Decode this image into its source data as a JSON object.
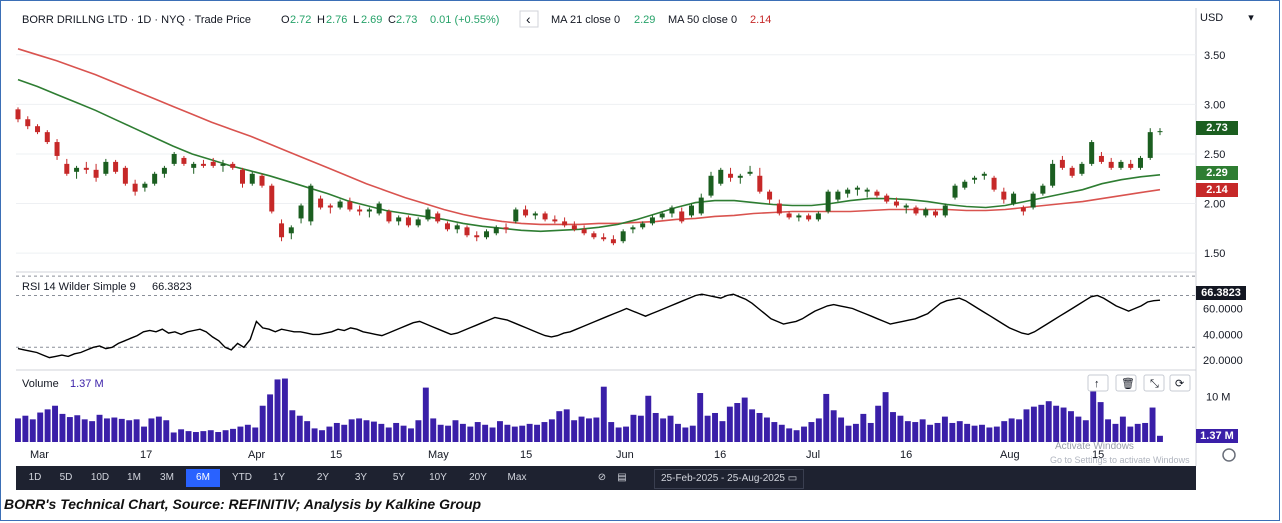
{
  "header": {
    "symbol": "BORR DRILLNG LTD · 1D · NYQ · Trade Price",
    "o_label": "O",
    "o_value": "2.72",
    "h_label": "H",
    "h_value": "2.76",
    "l_label": "L",
    "l_value": "2.69",
    "c_label": "C",
    "c_value": "2.73",
    "change": "0.01 (+0.55%)",
    "back_glyph": "‹",
    "ma21_label": "MA 21 close 0",
    "ma21_value": "2.29",
    "ma50_label": "MA 50 close 0",
    "ma50_value": "2.14"
  },
  "currency": "USD",
  "price_tags": {
    "last": "2.73",
    "ma21": "2.29",
    "ma50": "2.14"
  },
  "rsi": {
    "label": "RSI 14 Wilder Simple 9",
    "value": "66.3823"
  },
  "volume": {
    "label": "Volume",
    "value": "1.37 M",
    "tag": "1.37 M"
  },
  "x_axis_labels": [
    "Mar",
    "17",
    "Apr",
    "15",
    "May",
    "15",
    "Jun",
    "16",
    "Jul",
    "16",
    "Aug",
    "15"
  ],
  "timeframes": [
    "1D",
    "5D",
    "10D",
    "1M",
    "3M",
    "6M",
    "YTD",
    "1Y",
    "2Y",
    "3Y",
    "5Y",
    "10Y",
    "20Y",
    "Max"
  ],
  "active_timeframe": "6M",
  "date_range": "25-Feb-2025 - 25-Aug-2025",
  "watermark": {
    "title": "Activate Windows",
    "sub": "Go to Settings to activate Windows"
  },
  "caption": "BORR's Technical Chart, Source: REFINITIV; Analysis by Kalkine Group",
  "colors": {
    "up": "#1b5e20",
    "down": "#c62828",
    "ma21": "#2e7d32",
    "ma50": "#d9534f",
    "volume": "#3a1fa8",
    "rsi": "#000000",
    "active_tf": "#2962ff"
  },
  "chart_data": [
    {
      "type": "candlestick",
      "title": "BORR DRILLNG LTD · 1D · NYQ · Trade Price",
      "ylim": [
        1.35,
        3.75
      ],
      "yticks": [
        "3.50",
        "3.00",
        "2.50",
        "2.00",
        "1.50"
      ],
      "candles": [
        [
          2.95,
          2.97,
          2.82,
          2.85
        ],
        [
          2.85,
          2.88,
          2.75,
          2.78
        ],
        [
          2.78,
          2.8,
          2.7,
          2.72
        ],
        [
          2.72,
          2.74,
          2.6,
          2.62
        ],
        [
          2.62,
          2.65,
          2.44,
          2.48
        ],
        [
          2.4,
          2.45,
          2.28,
          2.3
        ],
        [
          2.32,
          2.38,
          2.25,
          2.36
        ],
        [
          2.36,
          2.42,
          2.3,
          2.34
        ],
        [
          2.34,
          2.4,
          2.22,
          2.26
        ],
        [
          2.3,
          2.45,
          2.28,
          2.42
        ],
        [
          2.42,
          2.44,
          2.3,
          2.32
        ],
        [
          2.36,
          2.38,
          2.18,
          2.2
        ],
        [
          2.2,
          2.24,
          2.08,
          2.12
        ],
        [
          2.16,
          2.22,
          2.12,
          2.2
        ],
        [
          2.2,
          2.32,
          2.18,
          2.3
        ],
        [
          2.3,
          2.38,
          2.26,
          2.36
        ],
        [
          2.4,
          2.52,
          2.38,
          2.5
        ],
        [
          2.46,
          2.48,
          2.38,
          2.4
        ],
        [
          2.36,
          2.42,
          2.3,
          2.4
        ],
        [
          2.4,
          2.44,
          2.36,
          2.38
        ],
        [
          2.42,
          2.46,
          2.36,
          2.38
        ],
        [
          2.38,
          2.44,
          2.32,
          2.4
        ],
        [
          2.4,
          2.42,
          2.34,
          2.36
        ],
        [
          2.34,
          2.36,
          2.16,
          2.2
        ],
        [
          2.2,
          2.32,
          2.18,
          2.3
        ],
        [
          2.28,
          2.3,
          2.16,
          2.18
        ],
        [
          2.18,
          2.2,
          1.9,
          1.92
        ],
        [
          1.8,
          1.84,
          1.62,
          1.66
        ],
        [
          1.7,
          1.78,
          1.64,
          1.76
        ],
        [
          1.85,
          2.0,
          1.8,
          1.98
        ],
        [
          1.82,
          2.2,
          1.78,
          2.18
        ],
        [
          2.05,
          2.08,
          1.94,
          1.96
        ],
        [
          1.98,
          2.0,
          1.9,
          1.96
        ],
        [
          1.96,
          2.04,
          1.94,
          2.02
        ],
        [
          2.02,
          2.06,
          1.92,
          1.94
        ],
        [
          1.94,
          1.98,
          1.88,
          1.92
        ],
        [
          1.92,
          1.96,
          1.86,
          1.94
        ],
        [
          1.9,
          2.02,
          1.88,
          2.0
        ],
        [
          1.92,
          1.94,
          1.8,
          1.82
        ],
        [
          1.82,
          1.88,
          1.78,
          1.86
        ],
        [
          1.86,
          1.88,
          1.76,
          1.78
        ],
        [
          1.78,
          1.86,
          1.76,
          1.84
        ],
        [
          1.84,
          1.96,
          1.82,
          1.94
        ],
        [
          1.9,
          1.92,
          1.8,
          1.82
        ],
        [
          1.8,
          1.82,
          1.72,
          1.74
        ],
        [
          1.74,
          1.8,
          1.7,
          1.78
        ],
        [
          1.76,
          1.78,
          1.66,
          1.68
        ],
        [
          1.68,
          1.72,
          1.62,
          1.66
        ],
        [
          1.66,
          1.74,
          1.64,
          1.72
        ],
        [
          1.7,
          1.78,
          1.68,
          1.76
        ],
        [
          1.76,
          1.8,
          1.7,
          1.74
        ],
        [
          1.82,
          1.96,
          1.8,
          1.94
        ],
        [
          1.94,
          1.98,
          1.86,
          1.88
        ],
        [
          1.88,
          1.92,
          1.84,
          1.9
        ],
        [
          1.9,
          1.92,
          1.82,
          1.84
        ],
        [
          1.84,
          1.88,
          1.8,
          1.82
        ],
        [
          1.82,
          1.86,
          1.76,
          1.78
        ],
        [
          1.78,
          1.82,
          1.72,
          1.74
        ],
        [
          1.74,
          1.78,
          1.68,
          1.7
        ],
        [
          1.7,
          1.72,
          1.64,
          1.66
        ],
        [
          1.66,
          1.7,
          1.62,
          1.64
        ],
        [
          1.64,
          1.68,
          1.58,
          1.6
        ],
        [
          1.62,
          1.74,
          1.6,
          1.72
        ],
        [
          1.74,
          1.78,
          1.7,
          1.76
        ],
        [
          1.76,
          1.82,
          1.74,
          1.8
        ],
        [
          1.8,
          1.88,
          1.78,
          1.86
        ],
        [
          1.86,
          1.92,
          1.84,
          1.9
        ],
        [
          1.9,
          1.98,
          1.86,
          1.96
        ],
        [
          1.92,
          1.96,
          1.8,
          1.82
        ],
        [
          1.88,
          2.0,
          1.86,
          1.98
        ],
        [
          1.9,
          2.1,
          1.88,
          2.06
        ],
        [
          2.08,
          2.32,
          2.06,
          2.28
        ],
        [
          2.2,
          2.36,
          2.18,
          2.34
        ],
        [
          2.3,
          2.36,
          2.22,
          2.26
        ],
        [
          2.26,
          2.3,
          2.2,
          2.28
        ],
        [
          2.3,
          2.38,
          2.28,
          2.32
        ],
        [
          2.28,
          2.36,
          2.1,
          2.12
        ],
        [
          2.12,
          2.14,
          2.0,
          2.04
        ],
        [
          2.0,
          2.04,
          1.88,
          1.9
        ],
        [
          1.9,
          1.92,
          1.84,
          1.86
        ],
        [
          1.86,
          1.9,
          1.82,
          1.88
        ],
        [
          1.88,
          1.9,
          1.82,
          1.84
        ],
        [
          1.84,
          1.92,
          1.82,
          1.9
        ],
        [
          1.92,
          2.14,
          1.9,
          2.12
        ],
        [
          2.04,
          2.14,
          2.02,
          2.12
        ],
        [
          2.1,
          2.16,
          2.06,
          2.14
        ],
        [
          2.14,
          2.18,
          2.08,
          2.16
        ],
        [
          2.12,
          2.16,
          2.06,
          2.14
        ],
        [
          2.12,
          2.14,
          2.06,
          2.08
        ],
        [
          2.08,
          2.1,
          2.0,
          2.02
        ],
        [
          2.02,
          2.06,
          1.96,
          1.98
        ],
        [
          1.96,
          2.0,
          1.9,
          1.98
        ],
        [
          1.96,
          1.98,
          1.88,
          1.9
        ],
        [
          1.88,
          1.96,
          1.86,
          1.94
        ],
        [
          1.92,
          1.94,
          1.86,
          1.88
        ],
        [
          1.88,
          2.0,
          1.86,
          1.98
        ],
        [
          2.06,
          2.2,
          2.04,
          2.18
        ],
        [
          2.16,
          2.24,
          2.14,
          2.22
        ],
        [
          2.24,
          2.28,
          2.2,
          2.26
        ],
        [
          2.28,
          2.32,
          2.24,
          2.3
        ],
        [
          2.26,
          2.28,
          2.12,
          2.14
        ],
        [
          2.12,
          2.16,
          2.0,
          2.04
        ],
        [
          2.0,
          2.12,
          1.98,
          2.1
        ],
        [
          1.96,
          1.98,
          1.88,
          1.92
        ],
        [
          1.96,
          2.12,
          1.94,
          2.1
        ],
        [
          2.1,
          2.2,
          2.08,
          2.18
        ],
        [
          2.18,
          2.44,
          2.16,
          2.4
        ],
        [
          2.44,
          2.48,
          2.34,
          2.36
        ],
        [
          2.36,
          2.38,
          2.26,
          2.28
        ],
        [
          2.3,
          2.42,
          2.28,
          2.4
        ],
        [
          2.4,
          2.64,
          2.38,
          2.62
        ],
        [
          2.48,
          2.52,
          2.4,
          2.42
        ],
        [
          2.42,
          2.46,
          2.34,
          2.36
        ],
        [
          2.36,
          2.44,
          2.34,
          2.42
        ],
        [
          2.4,
          2.44,
          2.34,
          2.36
        ],
        [
          2.36,
          2.48,
          2.34,
          2.46
        ],
        [
          2.46,
          2.76,
          2.44,
          2.72
        ],
        [
          2.72,
          2.76,
          2.69,
          2.73
        ]
      ],
      "ma21": [
        3.25,
        3.18,
        3.1,
        3.02,
        2.94,
        2.85,
        2.76,
        2.67,
        2.58,
        2.5,
        2.44,
        2.38,
        2.33,
        2.28,
        2.22,
        2.16,
        2.1,
        2.03,
        1.98,
        1.93,
        1.9,
        1.87,
        1.84,
        1.8,
        1.77,
        1.75,
        1.73,
        1.72,
        1.73,
        1.74,
        1.76,
        1.79,
        1.84,
        1.9,
        1.96,
        2.01,
        2.03,
        2.03,
        2.01,
        1.99,
        1.98,
        1.98,
        2.0,
        2.03,
        2.05,
        2.05,
        2.04,
        2.02,
        1.99,
        1.97,
        1.96,
        1.98,
        2.02,
        2.06,
        2.1,
        2.14,
        2.2,
        2.24,
        2.27,
        2.29
      ],
      "ma50": [
        3.56,
        3.5,
        3.44,
        3.37,
        3.3,
        3.22,
        3.14,
        3.06,
        2.98,
        2.9,
        2.82,
        2.75,
        2.68,
        2.6,
        2.52,
        2.44,
        2.36,
        2.28,
        2.2,
        2.13,
        2.06,
        2.0,
        1.94,
        1.89,
        1.85,
        1.82,
        1.8,
        1.79,
        1.79,
        1.79,
        1.8,
        1.8,
        1.81,
        1.82,
        1.84,
        1.85,
        1.87,
        1.88,
        1.9,
        1.91,
        1.92,
        1.92,
        1.92,
        1.92,
        1.93,
        1.94,
        1.94,
        1.94,
        1.94,
        1.93,
        1.93,
        1.94,
        1.96,
        1.98,
        2.0,
        2.02,
        2.05,
        2.08,
        2.11,
        2.14
      ]
    },
    {
      "type": "line",
      "title": "RSI 14 Wilder Simple 9",
      "ylim": [
        14,
        82
      ],
      "yticks": [
        "60.0000",
        "40.0000",
        "20.0000"
      ],
      "levels": [
        30,
        70
      ],
      "values": [
        29,
        28,
        27,
        26,
        24,
        22,
        23,
        24,
        23,
        25,
        26,
        28,
        30,
        31,
        29,
        30,
        33,
        35,
        37,
        39,
        42,
        43,
        42,
        44,
        41,
        42,
        40,
        42,
        43,
        44,
        42,
        38,
        35,
        30,
        28,
        33,
        30,
        36,
        50,
        45,
        44,
        42,
        44,
        43,
        42,
        42,
        41,
        40,
        40,
        41,
        42,
        44,
        43,
        45,
        44,
        42,
        41,
        40,
        39,
        41,
        43,
        45,
        47,
        49,
        50,
        48,
        46,
        44,
        42,
        40,
        41,
        43,
        45,
        47,
        49,
        51,
        53,
        52,
        51,
        49,
        47,
        45,
        43,
        41,
        39,
        38,
        39,
        41,
        42,
        44,
        46,
        48,
        50,
        52,
        54,
        56,
        58,
        60,
        58,
        56,
        54,
        56,
        58,
        60,
        62,
        64,
        66,
        68,
        70,
        71,
        70,
        69,
        68,
        70,
        71,
        69,
        67,
        64,
        60,
        56,
        52,
        50,
        48,
        49,
        50,
        52,
        55,
        58,
        60,
        62,
        63,
        62,
        61,
        60,
        58,
        56,
        54,
        52,
        50,
        48,
        49,
        50,
        51,
        52,
        54,
        56,
        60,
        64,
        66,
        67,
        68,
        66,
        63,
        60,
        57,
        54,
        51,
        48,
        45,
        43,
        41,
        40,
        42,
        45,
        48,
        51,
        54,
        57,
        60,
        63,
        66,
        69,
        70,
        68,
        65,
        62,
        60,
        58,
        60,
        62,
        65,
        66,
        66.38
      ]
    },
    {
      "type": "bar",
      "title": "Volume",
      "ylim": [
        0,
        15
      ],
      "yticks": [
        "10 M"
      ],
      "values": [
        5.2,
        5.8,
        5.0,
        6.5,
        7.2,
        8.0,
        6.2,
        5.5,
        5.9,
        5.0,
        4.6,
        6.0,
        5.2,
        5.4,
        5.1,
        4.8,
        5.0,
        3.4,
        5.2,
        5.6,
        4.8,
        2.1,
        2.8,
        2.4,
        2.2,
        2.4,
        2.6,
        2.2,
        2.6,
        2.9,
        3.4,
        3.8,
        3.2,
        8.0,
        10.5,
        13.8,
        14.0,
        7.0,
        5.8,
        4.6,
        3.0,
        2.6,
        3.4,
        4.2,
        3.8,
        5.0,
        5.2,
        4.8,
        4.5,
        4.0,
        3.2,
        4.2,
        3.6,
        3.0,
        4.8,
        12.0,
        5.2,
        3.8,
        3.6,
        4.8,
        4.0,
        3.4,
        4.4,
        3.8,
        3.2,
        4.6,
        3.8,
        3.4,
        3.6,
        4.0,
        3.8,
        4.4,
        5.0,
        6.8,
        7.2,
        4.8,
        5.6,
        5.2,
        5.4,
        12.2,
        4.4,
        3.2,
        3.4,
        6.0,
        5.8,
        10.2,
        6.4,
        5.2,
        5.8,
        4.0,
        3.2,
        3.6,
        10.8,
        5.8,
        6.4,
        4.6,
        7.8,
        8.6,
        9.8,
        7.2,
        6.4,
        5.4,
        4.4,
        3.8,
        3.0,
        2.6,
        3.4,
        4.4,
        5.2,
        10.6,
        7.0,
        5.4,
        3.6,
        4.0,
        6.2,
        4.2,
        8.0,
        11.0,
        6.6,
        5.8,
        4.6,
        4.4,
        5.0,
        3.8,
        4.2,
        5.6,
        4.2,
        4.6,
        4.0,
        3.6,
        3.8,
        3.2,
        3.4,
        4.6,
        5.2,
        5.0,
        7.2,
        7.8,
        8.2,
        9.0,
        8.0,
        7.6,
        6.8,
        5.6,
        4.8,
        13.4,
        8.8,
        5.0,
        4.0,
        5.6,
        3.4,
        4.0,
        4.2,
        7.6,
        1.37
      ]
    }
  ]
}
